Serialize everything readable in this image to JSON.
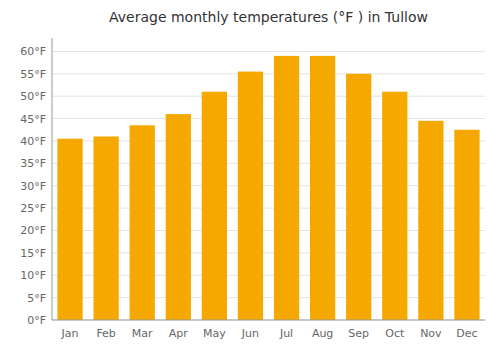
{
  "chart_data": {
    "type": "bar",
    "title": "Average monthly temperatures (°F ) in Tullow",
    "categories": [
      "Jan",
      "Feb",
      "Mar",
      "Apr",
      "May",
      "Jun",
      "Jul",
      "Aug",
      "Sep",
      "Oct",
      "Nov",
      "Dec"
    ],
    "values": [
      40.5,
      41.0,
      43.5,
      46.0,
      51.0,
      55.5,
      59.0,
      59.0,
      55.0,
      51.0,
      44.5,
      42.5
    ],
    "color": "#F5A800",
    "ylim": [
      0,
      63
    ],
    "yticks": [
      {
        "value": 0,
        "label": "0°F"
      },
      {
        "value": 5,
        "label": "5°F"
      },
      {
        "value": 10,
        "label": "10°F"
      },
      {
        "value": 15,
        "label": "15°F"
      },
      {
        "value": 20,
        "label": "20°F"
      },
      {
        "value": 25,
        "label": "25°F"
      },
      {
        "value": 30,
        "label": "30°F"
      },
      {
        "value": 35,
        "label": "35°F"
      },
      {
        "value": 40,
        "label": "40°F"
      },
      {
        "value": 45,
        "label": "45°F"
      },
      {
        "value": 50,
        "label": "50°F"
      },
      {
        "value": 55,
        "label": "55°F"
      },
      {
        "value": 60,
        "label": "60°F"
      }
    ],
    "grid": true
  }
}
